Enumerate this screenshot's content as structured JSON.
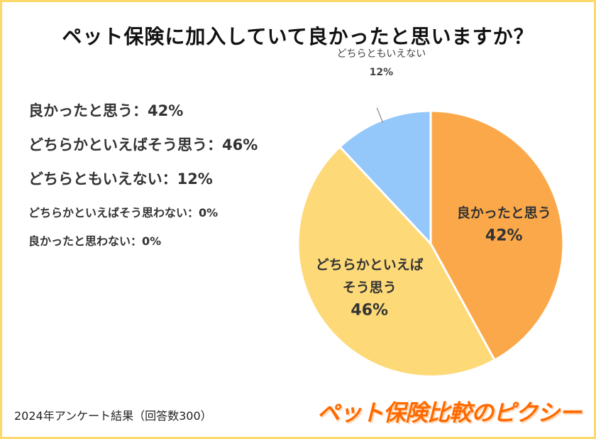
{
  "title": "ペット保険に加入していて良かったと思いますか？",
  "legend": [
    "良かったと思う：42%",
    "どちらかといえばそう思う：46%",
    "どちらともいえない：12%",
    "どちらかといえばそう思わない：0%",
    "良かったと思わない：0%"
  ],
  "footnote": "2024年アンケート結果（回答数300）",
  "brand": "ペット保険比較のピクシー",
  "chart_data": {
    "type": "pie",
    "slices": [
      {
        "label": "良かったと思う",
        "value": 42,
        "value_label": "42%",
        "color": "#fba84a",
        "label_lines": [
          "良かったと思う"
        ]
      },
      {
        "label": "どちらかといえばそう思う",
        "value": 46,
        "value_label": "46%",
        "color": "#fdd978",
        "label_lines": [
          "どちらかといえば",
          "そう思う"
        ]
      },
      {
        "label": "どちらともいえない",
        "value": 12,
        "value_label": "12%",
        "color": "#94c8fa",
        "label_lines": [
          "どちらともいえない"
        ]
      },
      {
        "label": "どちらかといえばそう思わない",
        "value": 0,
        "value_label": "0%",
        "color": "#cccccc",
        "label_lines": []
      },
      {
        "label": "良かったと思わない",
        "value": 0,
        "value_label": "0%",
        "color": "#aaaaaa",
        "label_lines": []
      }
    ]
  }
}
